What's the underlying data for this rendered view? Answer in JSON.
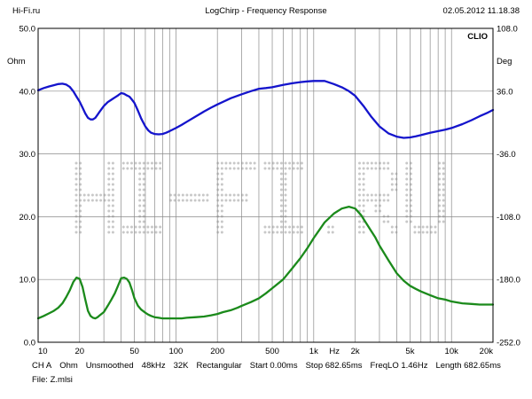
{
  "header": {
    "left": "Hi-Fi.ru",
    "center": "LogChirp - Frequency Response",
    "right": "02.05.2012 11.18.38"
  },
  "brand": "CLIO",
  "watermark": "HI-FI.RU",
  "footer": {
    "items": [
      "CH A",
      "Ohm",
      "Unsmoothed",
      "48kHz",
      "32K",
      "Rectangular",
      "Start 0.00ms",
      "Stop 682.65ms",
      "FreqLO 1.46Hz",
      "Length 682.65ms"
    ],
    "file": "File: Z.mlsi"
  },
  "chart_data": {
    "type": "line",
    "xlabel": "Hz",
    "ylabel": "Ohm",
    "y2label": "Deg",
    "xscale": "log",
    "xlim": [
      10,
      20000
    ],
    "ylim": [
      0,
      50
    ],
    "y2lim": [
      -252,
      108
    ],
    "xticks": [
      {
        "v": 10,
        "label": "10"
      },
      {
        "v": 20,
        "label": "20"
      },
      {
        "v": 50,
        "label": "50"
      },
      {
        "v": 100,
        "label": "100"
      },
      {
        "v": 200,
        "label": "200"
      },
      {
        "v": 500,
        "label": "500"
      },
      {
        "v": 1000,
        "label": "1k"
      },
      {
        "v": 2000,
        "label": "2k"
      },
      {
        "v": 5000,
        "label": "5k"
      },
      {
        "v": 10000,
        "label": "10k"
      },
      {
        "v": 20000,
        "label": "20k"
      }
    ],
    "yticks": [
      {
        "v": 0,
        "label": "0.0"
      },
      {
        "v": 10,
        "label": "10.0"
      },
      {
        "v": 20,
        "label": "20.0"
      },
      {
        "v": 30,
        "label": "30.0"
      },
      {
        "v": 40,
        "label": "40.0"
      },
      {
        "v": 50,
        "label": "50.0"
      }
    ],
    "y2ticks": [
      {
        "v": -252,
        "label": "-252.0"
      },
      {
        "v": -180,
        "label": "-180.0"
      },
      {
        "v": -108,
        "label": "-108.0"
      },
      {
        "v": -36,
        "label": "-36.0"
      },
      {
        "v": 36,
        "label": "36.0"
      },
      {
        "v": 108,
        "label": "108.0"
      }
    ],
    "grid": true,
    "series": [
      {
        "color": "#1414cc",
        "axis": "right",
        "x": [
          10,
          11,
          12,
          13,
          14,
          15,
          16,
          17,
          18,
          19,
          20,
          21,
          22,
          23,
          24,
          25,
          26,
          27,
          28,
          30,
          32,
          34,
          36,
          38,
          40,
          42,
          44,
          46,
          48,
          50,
          53,
          56,
          60,
          63,
          66,
          70,
          75,
          80,
          85,
          90,
          100,
          110,
          120,
          140,
          160,
          180,
          200,
          250,
          300,
          350,
          400,
          450,
          500,
          600,
          700,
          800,
          900,
          1000,
          1100,
          1200,
          1400,
          1600,
          1800,
          2000,
          2300,
          2600,
          3000,
          3500,
          4000,
          4500,
          5000,
          5500,
          6000,
          7000,
          8000,
          9000,
          10000,
          12000,
          14000,
          16000,
          18000,
          20000
        ],
        "y": [
          37.0,
          39.6,
          41.4,
          42.8,
          44.1,
          44.5,
          43.5,
          40.8,
          35.8,
          29.7,
          24.0,
          17.1,
          10.4,
          5.4,
          3.6,
          3.6,
          5.4,
          9.0,
          12.6,
          18.9,
          23.4,
          26.1,
          28.8,
          31.1,
          33.8,
          32.9,
          31.1,
          29.7,
          26.1,
          22.5,
          13.5,
          4.5,
          -4.5,
          -9.0,
          -11.7,
          -13.1,
          -13.5,
          -13.1,
          -11.7,
          -9.9,
          -6.3,
          -2.7,
          0.9,
          7.2,
          12.6,
          17.1,
          20.7,
          27.9,
          32.4,
          36.0,
          38.7,
          39.6,
          40.5,
          43.2,
          45.0,
          46.4,
          47.2,
          47.7,
          47.7,
          47.7,
          44.1,
          40.5,
          36.0,
          30.6,
          18.9,
          7.2,
          -4.5,
          -12.6,
          -16.2,
          -17.6,
          -17.1,
          -15.8,
          -14.4,
          -11.7,
          -9.9,
          -8.1,
          -6.3,
          -1.8,
          2.7,
          7.2,
          10.8,
          14.4
        ]
      },
      {
        "color": "#1b8a1b",
        "axis": "left",
        "x": [
          10,
          11,
          12,
          13,
          14,
          15,
          16,
          17,
          18,
          19,
          20,
          21,
          22,
          23,
          24,
          25,
          26,
          27,
          28,
          30,
          32,
          34,
          36,
          38,
          40,
          42,
          44,
          46,
          48,
          50,
          53,
          56,
          60,
          63,
          66,
          70,
          75,
          80,
          90,
          100,
          110,
          120,
          140,
          160,
          180,
          200,
          220,
          250,
          280,
          300,
          350,
          400,
          450,
          500,
          600,
          700,
          800,
          900,
          1000,
          1100,
          1200,
          1400,
          1600,
          1800,
          2000,
          2200,
          2400,
          2600,
          2800,
          3000,
          3500,
          4000,
          4500,
          5000,
          5500,
          6000,
          7000,
          8000,
          9000,
          10000,
          12000,
          14000,
          16000,
          18000,
          20000
        ],
        "y": [
          3.8,
          4.2,
          4.6,
          5.0,
          5.5,
          6.2,
          7.2,
          8.3,
          9.6,
          10.3,
          10.1,
          8.8,
          6.8,
          5.0,
          4.2,
          3.9,
          3.8,
          4.0,
          4.3,
          4.8,
          5.8,
          6.8,
          7.8,
          9.0,
          10.2,
          10.3,
          10.1,
          9.5,
          8.3,
          7.0,
          5.8,
          5.2,
          4.7,
          4.4,
          4.2,
          4.0,
          3.9,
          3.8,
          3.8,
          3.8,
          3.8,
          3.9,
          4.0,
          4.1,
          4.3,
          4.5,
          4.8,
          5.1,
          5.5,
          5.8,
          6.4,
          7.0,
          7.8,
          8.6,
          10.0,
          11.8,
          13.4,
          15.0,
          16.6,
          17.9,
          19.1,
          20.5,
          21.3,
          21.6,
          21.3,
          20.3,
          19.0,
          17.8,
          16.7,
          15.4,
          13.0,
          11.0,
          9.8,
          9.0,
          8.5,
          8.1,
          7.5,
          7.0,
          6.8,
          6.5,
          6.2,
          6.1,
          6.0,
          6.0,
          6.0
        ]
      }
    ]
  }
}
